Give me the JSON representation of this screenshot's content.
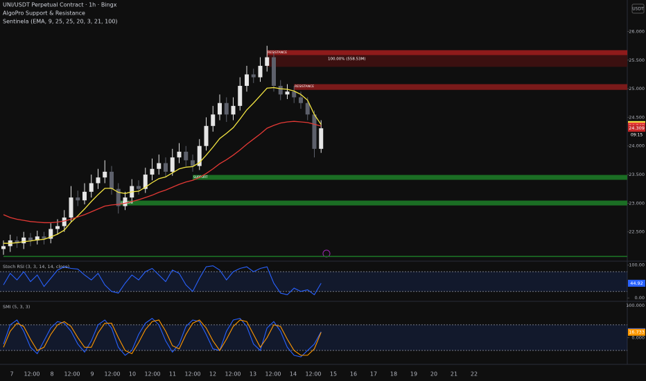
{
  "header": {
    "symbol": "UNI/USDT Perpetual Contract · 1h · Bingx",
    "indicators": [
      "AlgoPro Support & Resistance",
      "Sentinela (EMA, 9, 25, 25, 20, 3, 21, 100)"
    ],
    "currency": "USDT",
    "countdown": "09:15"
  },
  "time_axis": {
    "labels": [
      "7",
      "12:00",
      "8",
      "12:00",
      "9",
      "12:00",
      "10",
      "12:00",
      "11",
      "12:00",
      "12",
      "12:00",
      "13",
      "12:00",
      "14",
      "12:00",
      "15",
      "16",
      "17",
      "18",
      "19",
      "20",
      "21",
      "22"
    ]
  },
  "chart_data": [
    {
      "type": "candlestick",
      "up_color": "#e6e6e6",
      "down_color": "#5d606b",
      "open": [
        22.2,
        22.25,
        22.35,
        22.3,
        22.4,
        22.35,
        22.42,
        22.38,
        22.55,
        22.6,
        22.75,
        23.1,
        23.05,
        23.2,
        23.35,
        23.45,
        23.55,
        23.25,
        22.95,
        23.1,
        23.3,
        23.25,
        23.5,
        23.6,
        23.7,
        23.55,
        23.8,
        23.9,
        23.75,
        23.65,
        24.0,
        24.35,
        24.55,
        24.75,
        24.55,
        24.7,
        25.05,
        25.25,
        25.2,
        25.4,
        25.55,
        25.05,
        24.9,
        24.95,
        24.85,
        24.75,
        24.55,
        23.95
      ],
      "high": [
        22.35,
        22.45,
        22.42,
        22.5,
        22.48,
        22.52,
        22.5,
        22.65,
        22.72,
        22.88,
        23.3,
        23.22,
        23.35,
        23.5,
        23.6,
        23.75,
        23.65,
        23.35,
        23.2,
        23.42,
        23.4,
        23.62,
        23.78,
        23.85,
        23.8,
        23.95,
        24.05,
        24.0,
        23.85,
        24.12,
        24.5,
        24.7,
        24.9,
        24.85,
        24.85,
        25.2,
        25.4,
        25.35,
        25.55,
        25.75,
        25.62,
        25.15,
        25.08,
        25.05,
        24.95,
        24.85,
        24.62,
        24.45
      ],
      "low": [
        22.1,
        22.15,
        22.22,
        22.2,
        22.25,
        22.28,
        22.28,
        22.3,
        22.45,
        22.5,
        22.68,
        22.95,
        22.98,
        23.1,
        23.25,
        23.35,
        23.15,
        22.82,
        22.88,
        23.0,
        23.15,
        23.18,
        23.4,
        23.5,
        23.45,
        23.48,
        23.7,
        23.65,
        23.55,
        23.58,
        23.92,
        24.25,
        24.45,
        24.42,
        24.45,
        24.62,
        24.95,
        25.1,
        25.12,
        25.3,
        24.95,
        24.8,
        24.82,
        24.75,
        24.65,
        24.45,
        23.8,
        23.88
      ],
      "close": [
        22.25,
        22.35,
        22.3,
        22.4,
        22.35,
        22.42,
        22.38,
        22.55,
        22.6,
        22.75,
        23.1,
        23.05,
        23.2,
        23.35,
        23.45,
        23.55,
        23.25,
        22.95,
        23.1,
        23.3,
        23.25,
        23.5,
        23.6,
        23.7,
        23.55,
        23.8,
        23.9,
        23.75,
        23.65,
        24.0,
        24.35,
        24.55,
        24.75,
        24.55,
        24.7,
        25.05,
        25.25,
        25.2,
        25.4,
        25.55,
        25.05,
        24.9,
        24.95,
        24.85,
        24.75,
        24.55,
        23.95,
        24.309
      ],
      "lines": [
        {
          "color": "#f5e642",
          "values": [
            22.3,
            22.3,
            22.31,
            22.33,
            22.34,
            22.36,
            22.37,
            22.41,
            22.46,
            22.53,
            22.67,
            22.78,
            22.9,
            23.03,
            23.15,
            23.26,
            23.26,
            23.19,
            23.17,
            23.2,
            23.21,
            23.28,
            23.36,
            23.43,
            23.46,
            23.53,
            23.6,
            23.63,
            23.64,
            23.71,
            23.84,
            23.98,
            24.13,
            24.22,
            24.32,
            24.47,
            24.63,
            24.75,
            24.88,
            25.01,
            25.02,
            25.0,
            24.99,
            24.96,
            24.9,
            24.8,
            24.55,
            24.374
          ]
        },
        {
          "color": "#e53935",
          "values": [
            22.8,
            22.75,
            22.72,
            22.7,
            22.68,
            22.67,
            22.66,
            22.66,
            22.67,
            22.69,
            22.72,
            22.76,
            22.8,
            22.85,
            22.9,
            22.95,
            22.97,
            22.98,
            23.0,
            23.03,
            23.06,
            23.1,
            23.14,
            23.19,
            23.23,
            23.28,
            23.33,
            23.37,
            23.4,
            23.45,
            23.52,
            23.6,
            23.69,
            23.76,
            23.84,
            23.93,
            24.03,
            24.12,
            24.21,
            24.31,
            24.36,
            24.4,
            24.42,
            24.43,
            24.42,
            24.41,
            24.38,
            24.348
          ]
        }
      ],
      "zones": [
        {
          "label": "RESISTANCE",
          "top": 25.673,
          "bottom": 25.588,
          "start": 39,
          "color": "#8e1b1b"
        },
        {
          "top": 25.588,
          "bottom": 25.383,
          "start": 39,
          "color": "#3b1010"
        },
        {
          "label": "RESISTANCE",
          "top": 25.08,
          "bottom": 24.98,
          "start": 43,
          "color": "#7a1a1a"
        },
        {
          "label": "SUPPORT",
          "top": 23.494,
          "bottom": 23.409,
          "start": 28,
          "color": "#1b6e24"
        },
        {
          "label": "SUPPORT",
          "top": 23.046,
          "bottom": 22.961,
          "start": 17,
          "color": "#1b6e24"
        },
        {
          "top": 22.08,
          "bottom": 22.06,
          "start": 0,
          "color": "#1b6e24"
        }
      ],
      "annotations": [
        {
          "text": "100.00% (558.53M)",
          "index": 48,
          "value": 25.52
        }
      ],
      "ylim": [
        22.0,
        26.55
      ],
      "yticks": [
        {
          "value": 22.5,
          "label": "22.500"
        },
        {
          "value": 23,
          "label": "23.000"
        },
        {
          "value": 23.5,
          "label": "23.500"
        },
        {
          "value": 24,
          "label": "24.000"
        },
        {
          "value": 24.5,
          "label": "24.500"
        },
        {
          "value": 25,
          "label": "25.000"
        },
        {
          "value": 25.5,
          "label": "25.500"
        },
        {
          "value": 26,
          "label": "26.000"
        }
      ]
    },
    {
      "type": "line",
      "title": "Stoch RSI (3, 3, 14, 14, close)",
      "ylim": [
        -8,
        110
      ],
      "yticks": [
        {
          "value": 100,
          "label": "100.00"
        },
        {
          "value": 0,
          "label": "0.00"
        }
      ],
      "bands": [
        20,
        80
      ],
      "series": [
        {
          "color": "#2962ff",
          "values": [
            40,
            75,
            55,
            80,
            50,
            70,
            35,
            60,
            85,
            95,
            90,
            88,
            70,
            55,
            75,
            40,
            20,
            15,
            45,
            70,
            55,
            80,
            90,
            70,
            50,
            85,
            75,
            40,
            20,
            60,
            95,
            98,
            85,
            55,
            80,
            90,
            95,
            80,
            90,
            95,
            45,
            15,
            10,
            30,
            20,
            25,
            10,
            44.92
          ]
        }
      ]
    },
    {
      "type": "line",
      "title": "SMI (5, 3, 3)",
      "ylim": [
        -79,
        111
      ],
      "yticks": [
        {
          "value": 100,
          "label": "100.000"
        },
        {
          "value": 0,
          "label": "0.000"
        }
      ],
      "bands": [
        -40,
        40
      ],
      "series": [
        {
          "color": "#2962ff",
          "values": [
            -20,
            40,
            55,
            20,
            -30,
            -50,
            -10,
            30,
            50,
            45,
            20,
            -20,
            -45,
            -10,
            40,
            55,
            30,
            -30,
            -55,
            -40,
            10,
            45,
            60,
            40,
            -10,
            -45,
            -20,
            35,
            55,
            50,
            10,
            -35,
            -40,
            20,
            55,
            60,
            35,
            -20,
            -40,
            30,
            50,
            20,
            -30,
            -55,
            -60,
            -40,
            -20,
            18.484
          ]
        },
        {
          "color": "#ff9800",
          "values": [
            -30,
            20,
            45,
            35,
            -5,
            -40,
            -30,
            10,
            40,
            50,
            35,
            0,
            -30,
            -30,
            15,
            45,
            45,
            0,
            -40,
            -50,
            -15,
            25,
            50,
            55,
            20,
            -25,
            -35,
            10,
            45,
            55,
            30,
            -10,
            -40,
            -5,
            35,
            55,
            50,
            10,
            -30,
            0,
            40,
            35,
            -5,
            -40,
            -55,
            -55,
            -35,
            16.733
          ]
        }
      ]
    }
  ]
}
